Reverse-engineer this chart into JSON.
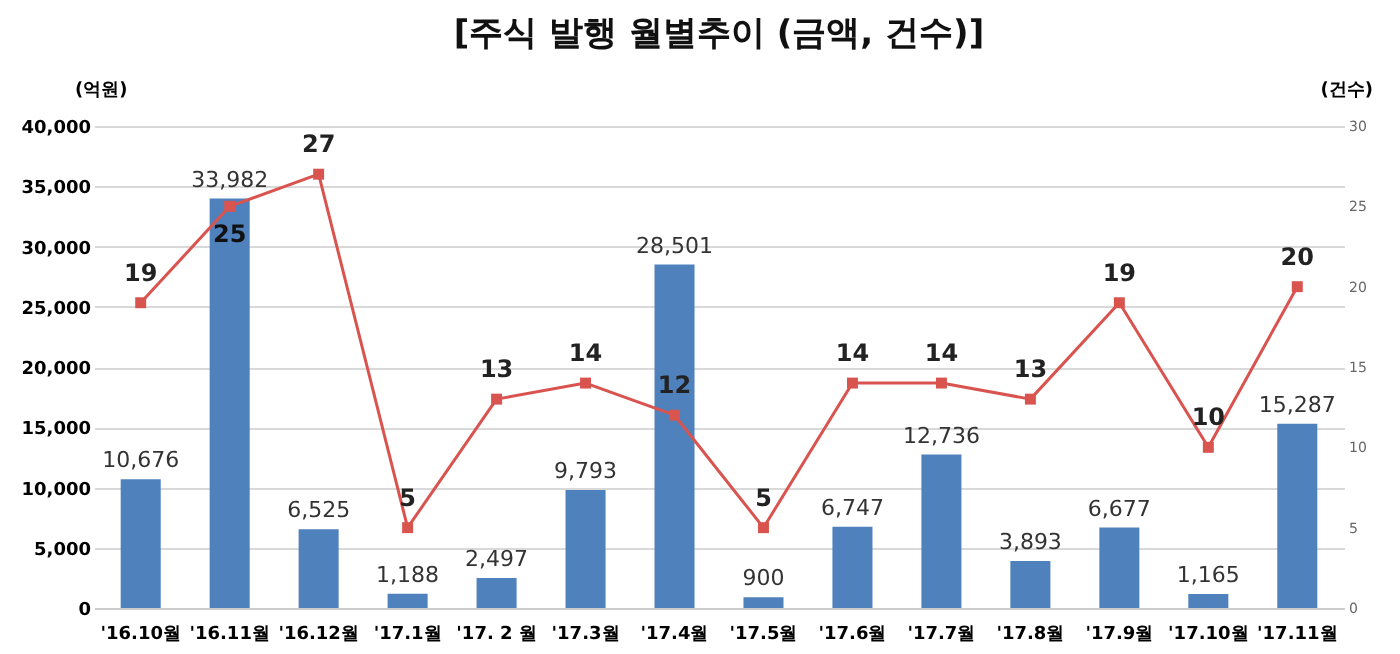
{
  "chart_data": {
    "type": "bar",
    "title": "[주식 발행 월별추이 (금액, 건수)]",
    "categories": [
      "'16.10월",
      "'16.11월",
      "'16.12월",
      "'17.1월",
      "'17. 2 월",
      "'17.3월",
      "'17.4월",
      "'17.5월",
      "'17.6월",
      "'17.7월",
      "'17.8월",
      "'17.9월",
      "'17.10월",
      "'17.11월"
    ],
    "series": [
      {
        "color": "#4f81bd",
        "values": [
          10676,
          33982,
          6525,
          1188,
          2497,
          9793,
          28501,
          900,
          6747,
          12736,
          3893,
          6677,
          1165,
          15287
        ],
        "value_labels": [
          "10,676",
          "33,982",
          "6,525",
          "1,188",
          "2,497",
          "9,793",
          "28,501",
          "900",
          "6,747",
          "12,736",
          "3,893",
          "6,677",
          "1,165",
          "15,287"
        ]
      },
      {
        "type": "line",
        "axis": "y2",
        "color": "#d9534f",
        "marker": "square",
        "values": [
          19,
          25,
          27,
          5,
          13,
          14,
          12,
          5,
          14,
          14,
          13,
          19,
          10,
          20
        ]
      }
    ],
    "ylabel": "(억원)",
    "y2label": "(건수)",
    "ylim": [
      0,
      40000
    ],
    "yticks": [
      0,
      {
        "value": 5000,
        "label": "5,000"
      },
      {
        "value": 10000,
        "label": "10,000"
      },
      {
        "value": 15000,
        "label": "15,000"
      },
      {
        "value": 20000,
        "label": "20,000"
      },
      {
        "value": 25000,
        "label": "25,000"
      },
      {
        "value": 30000,
        "label": "30,000"
      },
      {
        "value": 35000,
        "label": "35,000"
      },
      {
        "value": 40000,
        "label": "40,000"
      }
    ],
    "y2lim": [
      0,
      30
    ],
    "y2ticks": [
      0,
      5,
      10,
      15,
      20,
      25,
      30
    ],
    "grid": "y",
    "data_labels": true
  }
}
